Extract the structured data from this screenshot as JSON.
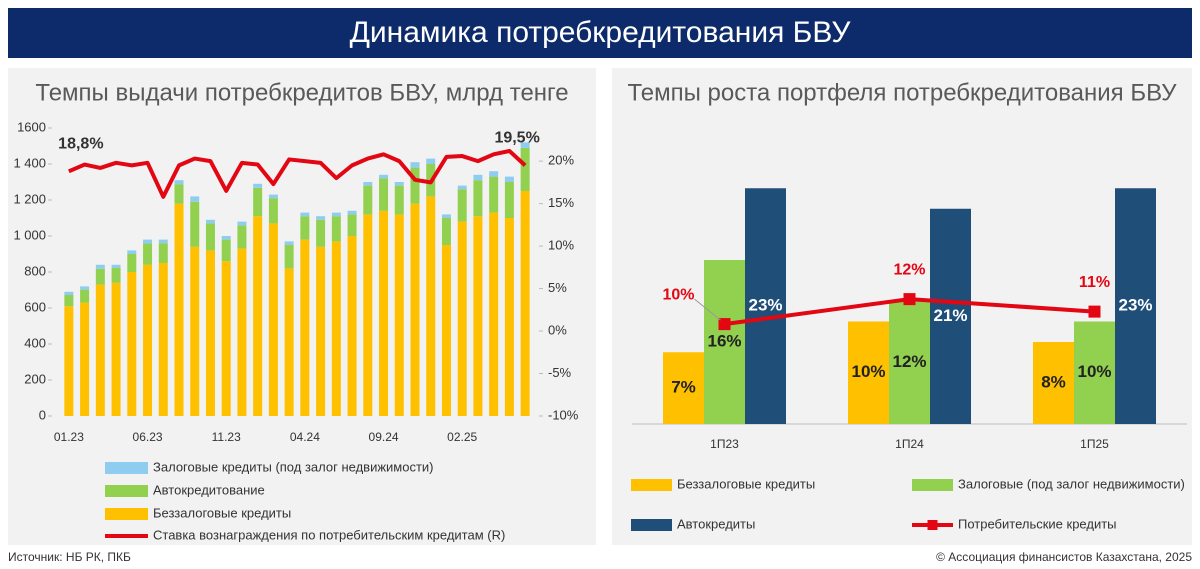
{
  "header": {
    "title": "Динамика потребкредитования БВУ"
  },
  "footer": {
    "source": "Источник: НБ РК, ПКБ",
    "copyright": "© Ассоциация финансистов Казахстана, 2025"
  },
  "chart_data": [
    {
      "type": "bar",
      "stacked": true,
      "title": "Темпы выдачи потребкредитов БВУ, млрд тенге",
      "categories": [
        "01.23",
        null,
        null,
        null,
        null,
        "06.23",
        null,
        null,
        null,
        null,
        "11.23",
        null,
        null,
        null,
        null,
        "04.24",
        null,
        null,
        null,
        null,
        "09.24",
        null,
        null,
        null,
        null,
        "02.25",
        null,
        null,
        null,
        null
      ],
      "series": [
        {
          "name": "Беззалоговые кредиты",
          "color": "#ffc000",
          "values": [
            610,
            630,
            730,
            740,
            800,
            840,
            850,
            1180,
            940,
            920,
            860,
            930,
            1110,
            1070,
            820,
            980,
            940,
            970,
            1000,
            1120,
            1140,
            1120,
            1180,
            1220,
            950,
            1080,
            1110,
            1130,
            1100,
            1250
          ]
        },
        {
          "name": "Автокредитование",
          "color": "#92d050",
          "values": [
            62,
            72,
            88,
            82,
            100,
            118,
            110,
            108,
            250,
            150,
            120,
            128,
            158,
            140,
            130,
            130,
            150,
            140,
            120,
            160,
            180,
            160,
            200,
            180,
            150,
            180,
            200,
            200,
            200,
            240
          ]
        },
        {
          "name": "Залоговые кредиты (под залог недвижимости)",
          "color": "#8fcdf0",
          "values": [
            18,
            18,
            22,
            18,
            20,
            22,
            20,
            22,
            30,
            20,
            20,
            22,
            22,
            20,
            20,
            20,
            20,
            20,
            20,
            20,
            20,
            20,
            30,
            30,
            20,
            20,
            30,
            30,
            30,
            30
          ]
        },
        {
          "name": "Ставка вознаграждения по  потребительским кредитам (R)",
          "color": "#e30613",
          "type": "line",
          "axis": "y2",
          "values": [
            18.8,
            19.6,
            19.2,
            19.8,
            19.5,
            19.8,
            15.8,
            19.5,
            20.3,
            20.0,
            16.5,
            19.8,
            19.6,
            17.3,
            20.2,
            20.0,
            19.8,
            18.0,
            19.5,
            20.3,
            20.8,
            20.0,
            17.8,
            17.5,
            20.5,
            20.6,
            20.0,
            20.8,
            21.2,
            19.5
          ],
          "value_labels": [
            "18,8%",
            null,
            null,
            null,
            null,
            null,
            null,
            null,
            null,
            null,
            null,
            null,
            null,
            null,
            null,
            null,
            null,
            null,
            null,
            null,
            null,
            null,
            null,
            null,
            null,
            null,
            null,
            null,
            null,
            "19,5%"
          ]
        }
      ],
      "ylim": [
        0,
        1600
      ],
      "yticks": [
        0,
        200,
        400,
        600,
        800,
        {
          "value": 1000,
          "label": "1 000"
        },
        {
          "value": 1200,
          "label": "1 200"
        },
        {
          "value": 1400,
          "label": "1 400"
        },
        1600
      ],
      "y2lim": [
        -10,
        23.9
      ],
      "y2ticks": [
        {
          "value": -10,
          "label": "-10%"
        },
        {
          "value": -5,
          "label": "-5%"
        },
        {
          "value": 0,
          "label": "0%"
        },
        {
          "value": 5,
          "label": "5%"
        },
        {
          "value": 10,
          "label": "10%"
        },
        {
          "value": 15,
          "label": "15%"
        },
        {
          "value": 20,
          "label": "20%"
        }
      ]
    },
    {
      "type": "bar",
      "stacked": false,
      "title": "Темпы роста портфеля потребкредитования БВУ",
      "categories": [
        "1П23",
        "1П24",
        "1П25"
      ],
      "series": [
        {
          "name": "Беззалоговые кредиты",
          "color": "#ffc000",
          "values": [
            7,
            10,
            8
          ],
          "value_labels": [
            "7%",
            "10%",
            "8%"
          ]
        },
        {
          "name": "Залоговые  (под залог недвижимости)",
          "color": "#92d050",
          "values": [
            16,
            12,
            10
          ],
          "value_labels": [
            "16%",
            "12%",
            "10%"
          ]
        },
        {
          "name": "Автокредиты",
          "color": "#1f4e79",
          "values": [
            23,
            21,
            23
          ],
          "value_labels": [
            "23%",
            "21%",
            "23%"
          ]
        },
        {
          "name": "Потребительские кредиты",
          "color": "#e30613",
          "type": "line",
          "axis": "y2",
          "values": [
            10,
            12,
            11
          ],
          "value_labels": [
            "10%",
            "12%",
            "11%"
          ]
        }
      ],
      "ylim": [
        0,
        24
      ],
      "y2lim": [
        2,
        21.7
      ]
    }
  ]
}
